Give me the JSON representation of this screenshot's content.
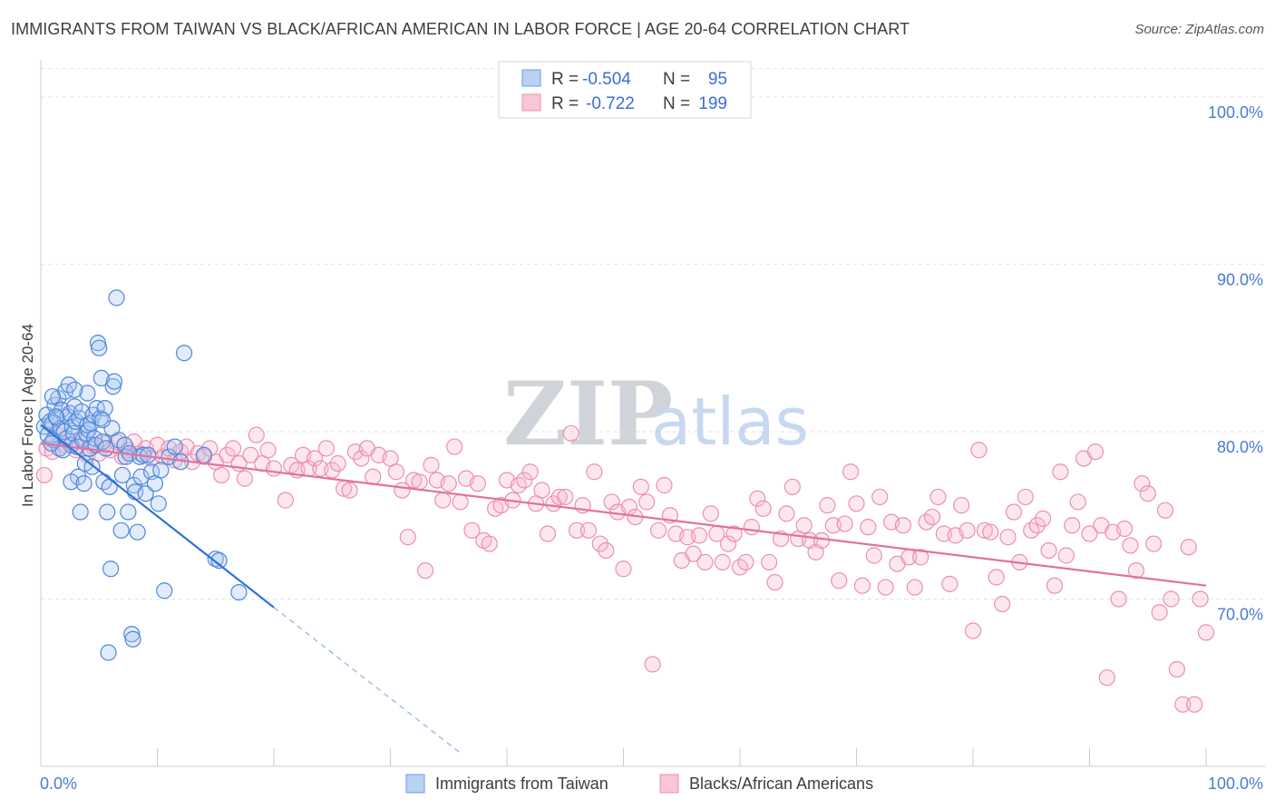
{
  "title": "IMMIGRANTS FROM TAIWAN VS BLACK/AFRICAN AMERICAN IN LABOR FORCE | AGE 20-64 CORRELATION CHART",
  "source": "Source: ZipAtlas.com",
  "watermark": {
    "zip": "ZIP",
    "atlas": "atlas"
  },
  "legend_top": [
    {
      "r_label": "R =",
      "r_value": "-0.504",
      "n_label": "N =",
      "n_value": "95",
      "color": "#6a9be3"
    },
    {
      "r_label": "R =",
      "r_value": "-0.722",
      "n_label": "N =",
      "n_value": "199",
      "color": "#ec8fb0"
    }
  ],
  "legend_bottom": [
    {
      "label": "Immigrants from Taiwan",
      "color": "#6a9be3"
    },
    {
      "label": "Blacks/African Americans",
      "color": "#ec8fb0"
    }
  ],
  "chart_data": {
    "type": "scatter",
    "title": "IMMIGRANTS FROM TAIWAN VS BLACK/AFRICAN AMERICAN IN LABOR FORCE | AGE 20-64 CORRELATION CHART",
    "xlabel": "",
    "ylabel": "In Labor Force | Age 20-64",
    "xlim": [
      0,
      100
    ],
    "ylim": [
      60,
      102
    ],
    "x_tick_labels": [
      "0.0%",
      "100.0%"
    ],
    "y_ticks": [
      70,
      80,
      90,
      100
    ],
    "y_tick_labels": [
      "70.0%",
      "80.0%",
      "90.0%",
      "100.0%"
    ],
    "grid": true,
    "series": [
      {
        "name": "Immigrants from Taiwan",
        "color": "#6a9be3",
        "trend": {
          "x0": 0,
          "y0": 80.4,
          "x1": 20,
          "y1": 69.5,
          "dash_x1": 36,
          "dash_y1": 60.8
        },
        "points": [
          [
            0.3,
            80.3
          ],
          [
            0.5,
            81.0
          ],
          [
            0.6,
            79.8
          ],
          [
            0.8,
            80.6
          ],
          [
            1.0,
            80.5
          ],
          [
            1.1,
            79.5
          ],
          [
            1.2,
            81.6
          ],
          [
            1.4,
            80.8
          ],
          [
            1.5,
            82.0
          ],
          [
            1.6,
            79.0
          ],
          [
            1.7,
            80.2
          ],
          [
            1.8,
            81.3
          ],
          [
            2.0,
            80.0
          ],
          [
            2.1,
            82.4
          ],
          [
            2.2,
            79.6
          ],
          [
            2.3,
            80.9
          ],
          [
            2.4,
            82.8
          ],
          [
            2.5,
            81.1
          ],
          [
            2.6,
            79.2
          ],
          [
            2.7,
            80.3
          ],
          [
            2.8,
            79.9
          ],
          [
            2.9,
            81.5
          ],
          [
            3.0,
            80.6
          ],
          [
            3.1,
            79.1
          ],
          [
            3.2,
            77.3
          ],
          [
            3.3,
            80.8
          ],
          [
            3.4,
            75.2
          ],
          [
            3.5,
            81.2
          ],
          [
            3.6,
            79.5
          ],
          [
            3.8,
            78.1
          ],
          [
            3.9,
            79.9
          ],
          [
            4.0,
            80.4
          ],
          [
            4.1,
            80.1
          ],
          [
            4.2,
            79.0
          ],
          [
            4.3,
            80.5
          ],
          [
            4.4,
            77.9
          ],
          [
            4.5,
            81.0
          ],
          [
            4.6,
            79.6
          ],
          [
            4.7,
            79.2
          ],
          [
            4.8,
            81.4
          ],
          [
            4.9,
            85.3
          ],
          [
            5.0,
            85.0
          ],
          [
            5.1,
            80.8
          ],
          [
            5.2,
            83.2
          ],
          [
            5.3,
            79.4
          ],
          [
            5.4,
            77.0
          ],
          [
            5.5,
            81.4
          ],
          [
            5.6,
            79.0
          ],
          [
            5.7,
            75.2
          ],
          [
            5.8,
            66.8
          ],
          [
            5.9,
            76.7
          ],
          [
            6.0,
            71.8
          ],
          [
            6.2,
            82.7
          ],
          [
            6.3,
            83.0
          ],
          [
            6.5,
            88.0
          ],
          [
            6.7,
            79.5
          ],
          [
            6.9,
            74.1
          ],
          [
            7.0,
            77.4
          ],
          [
            7.2,
            79.2
          ],
          [
            7.3,
            78.5
          ],
          [
            7.5,
            75.2
          ],
          [
            7.6,
            78.7
          ],
          [
            7.8,
            67.9
          ],
          [
            7.9,
            67.6
          ],
          [
            8.0,
            76.8
          ],
          [
            8.1,
            76.4
          ],
          [
            8.3,
            74.0
          ],
          [
            8.5,
            78.5
          ],
          [
            8.6,
            77.3
          ],
          [
            8.8,
            78.6
          ],
          [
            9.0,
            76.3
          ],
          [
            9.2,
            78.6
          ],
          [
            9.5,
            77.6
          ],
          [
            9.8,
            76.9
          ],
          [
            10.1,
            75.7
          ],
          [
            10.3,
            77.7
          ],
          [
            10.6,
            70.5
          ],
          [
            11.0,
            78.5
          ],
          [
            11.5,
            79.1
          ],
          [
            12.0,
            78.2
          ],
          [
            14.0,
            78.6
          ],
          [
            15.0,
            72.4
          ],
          [
            15.3,
            72.3
          ],
          [
            17.0,
            70.4
          ],
          [
            12.3,
            84.7
          ],
          [
            1.9,
            78.9
          ],
          [
            2.6,
            77.0
          ],
          [
            3.7,
            76.9
          ],
          [
            6.1,
            80.2
          ],
          [
            4.0,
            82.3
          ],
          [
            2.9,
            82.5
          ],
          [
            5.3,
            80.7
          ],
          [
            1.3,
            80.9
          ],
          [
            0.9,
            79.3
          ],
          [
            1.0,
            82.1
          ]
        ]
      },
      {
        "name": "Blacks/African Americans",
        "color": "#ec8fb0",
        "trend": {
          "x0": 0,
          "y0": 79.3,
          "x1": 100,
          "y1": 70.8
        },
        "points": [
          [
            0.3,
            77.4
          ],
          [
            0.5,
            79.0
          ],
          [
            1.0,
            78.8
          ],
          [
            1.5,
            79.8
          ],
          [
            2.0,
            79.2
          ],
          [
            2.5,
            79.4
          ],
          [
            3.0,
            78.9
          ],
          [
            3.5,
            79.6
          ],
          [
            4.0,
            78.6
          ],
          [
            4.5,
            79.1
          ],
          [
            5.0,
            78.7
          ],
          [
            5.5,
            79.3
          ],
          [
            6.0,
            78.9
          ],
          [
            6.5,
            79.4
          ],
          [
            7.0,
            78.5
          ],
          [
            7.5,
            78.9
          ],
          [
            8.0,
            79.4
          ],
          [
            8.5,
            78.7
          ],
          [
            9.0,
            79.0
          ],
          [
            9.5,
            78.4
          ],
          [
            10.0,
            79.2
          ],
          [
            10.5,
            78.5
          ],
          [
            11.0,
            79.0
          ],
          [
            11.5,
            78.3
          ],
          [
            12.0,
            78.8
          ],
          [
            12.5,
            79.1
          ],
          [
            13.0,
            78.2
          ],
          [
            13.5,
            78.7
          ],
          [
            14.0,
            78.5
          ],
          [
            14.5,
            79.0
          ],
          [
            15.0,
            78.2
          ],
          [
            15.5,
            77.4
          ],
          [
            16.0,
            78.6
          ],
          [
            16.5,
            79.0
          ],
          [
            17.0,
            78.1
          ],
          [
            17.5,
            77.2
          ],
          [
            18.0,
            78.6
          ],
          [
            18.5,
            79.8
          ],
          [
            19.0,
            78.1
          ],
          [
            19.5,
            78.9
          ],
          [
            20.0,
            77.8
          ],
          [
            21.0,
            75.9
          ],
          [
            21.5,
            78.0
          ],
          [
            22.0,
            77.7
          ],
          [
            22.5,
            78.6
          ],
          [
            23.0,
            77.8
          ],
          [
            23.5,
            78.4
          ],
          [
            24.0,
            77.8
          ],
          [
            24.5,
            79.0
          ],
          [
            25.0,
            77.7
          ],
          [
            25.5,
            78.1
          ],
          [
            26.0,
            76.6
          ],
          [
            26.5,
            76.5
          ],
          [
            27.0,
            78.8
          ],
          [
            27.5,
            78.4
          ],
          [
            28.0,
            79.0
          ],
          [
            28.5,
            77.3
          ],
          [
            29.0,
            78.6
          ],
          [
            30.0,
            78.4
          ],
          [
            30.5,
            77.6
          ],
          [
            31.0,
            76.5
          ],
          [
            31.5,
            73.7
          ],
          [
            32.0,
            77.1
          ],
          [
            32.5,
            77.0
          ],
          [
            33.0,
            71.7
          ],
          [
            33.5,
            78.0
          ],
          [
            34.0,
            77.1
          ],
          [
            34.5,
            75.9
          ],
          [
            35.0,
            76.9
          ],
          [
            35.5,
            79.1
          ],
          [
            36.0,
            75.8
          ],
          [
            36.5,
            77.2
          ],
          [
            37.0,
            74.1
          ],
          [
            37.5,
            76.9
          ],
          [
            38.0,
            73.5
          ],
          [
            38.5,
            73.3
          ],
          [
            39.0,
            75.4
          ],
          [
            39.5,
            75.6
          ],
          [
            40.0,
            77.1
          ],
          [
            40.5,
            75.9
          ],
          [
            41.0,
            76.8
          ],
          [
            41.5,
            77.1
          ],
          [
            42.0,
            77.6
          ],
          [
            42.5,
            75.7
          ],
          [
            43.0,
            76.5
          ],
          [
            43.5,
            73.9
          ],
          [
            44.0,
            75.7
          ],
          [
            44.5,
            76.1
          ],
          [
            45.0,
            76.1
          ],
          [
            45.5,
            79.9
          ],
          [
            46.0,
            74.1
          ],
          [
            46.5,
            75.6
          ],
          [
            47.0,
            74.1
          ],
          [
            47.5,
            77.6
          ],
          [
            48.0,
            73.3
          ],
          [
            48.5,
            72.9
          ],
          [
            49.0,
            75.8
          ],
          [
            49.5,
            75.2
          ],
          [
            50.0,
            71.8
          ],
          [
            50.5,
            75.5
          ],
          [
            51.0,
            74.9
          ],
          [
            51.5,
            76.7
          ],
          [
            52.0,
            75.8
          ],
          [
            52.5,
            66.1
          ],
          [
            53.0,
            74.1
          ],
          [
            53.5,
            76.8
          ],
          [
            54.0,
            75.0
          ],
          [
            54.5,
            73.9
          ],
          [
            55.0,
            72.3
          ],
          [
            55.5,
            73.7
          ],
          [
            56.0,
            72.7
          ],
          [
            56.5,
            73.8
          ],
          [
            57.0,
            72.2
          ],
          [
            57.5,
            75.1
          ],
          [
            58.0,
            73.9
          ],
          [
            58.5,
            72.2
          ],
          [
            59.0,
            73.3
          ],
          [
            59.5,
            73.9
          ],
          [
            60.0,
            71.9
          ],
          [
            60.5,
            72.2
          ],
          [
            61.0,
            74.3
          ],
          [
            61.5,
            76.0
          ],
          [
            62.0,
            75.4
          ],
          [
            62.5,
            72.2
          ],
          [
            63.0,
            71.0
          ],
          [
            63.5,
            73.6
          ],
          [
            64.0,
            75.1
          ],
          [
            64.5,
            76.7
          ],
          [
            65.0,
            73.6
          ],
          [
            65.5,
            74.4
          ],
          [
            66.0,
            73.5
          ],
          [
            66.5,
            72.8
          ],
          [
            67.0,
            73.5
          ],
          [
            67.5,
            75.6
          ],
          [
            68.0,
            74.4
          ],
          [
            68.5,
            71.1
          ],
          [
            69.0,
            74.5
          ],
          [
            69.5,
            77.6
          ],
          [
            70.0,
            75.7
          ],
          [
            70.5,
            70.8
          ],
          [
            71.0,
            74.3
          ],
          [
            71.5,
            72.6
          ],
          [
            72.0,
            76.1
          ],
          [
            72.5,
            70.7
          ],
          [
            73.0,
            74.6
          ],
          [
            73.5,
            72.1
          ],
          [
            74.0,
            74.4
          ],
          [
            74.5,
            72.5
          ],
          [
            75.0,
            70.7
          ],
          [
            75.5,
            72.5
          ],
          [
            76.0,
            74.6
          ],
          [
            76.5,
            74.9
          ],
          [
            77.0,
            76.1
          ],
          [
            77.5,
            73.9
          ],
          [
            78.0,
            70.9
          ],
          [
            78.5,
            73.8
          ],
          [
            79.0,
            75.6
          ],
          [
            79.5,
            74.1
          ],
          [
            80.0,
            68.1
          ],
          [
            80.5,
            78.9
          ],
          [
            81.0,
            74.1
          ],
          [
            81.5,
            74.0
          ],
          [
            82.0,
            71.3
          ],
          [
            82.5,
            69.7
          ],
          [
            83.0,
            73.7
          ],
          [
            83.5,
            75.2
          ],
          [
            84.0,
            72.2
          ],
          [
            84.5,
            76.1
          ],
          [
            85.0,
            74.1
          ],
          [
            85.5,
            74.4
          ],
          [
            86.0,
            74.8
          ],
          [
            86.5,
            72.9
          ],
          [
            87.0,
            70.8
          ],
          [
            87.5,
            77.6
          ],
          [
            88.0,
            72.6
          ],
          [
            88.5,
            74.4
          ],
          [
            89.0,
            75.8
          ],
          [
            89.5,
            78.4
          ],
          [
            90.0,
            73.9
          ],
          [
            90.5,
            78.8
          ],
          [
            91.0,
            74.4
          ],
          [
            91.5,
            65.3
          ],
          [
            92.0,
            74.0
          ],
          [
            92.5,
            70.0
          ],
          [
            93.0,
            74.2
          ],
          [
            93.5,
            73.2
          ],
          [
            94.0,
            71.7
          ],
          [
            94.5,
            76.9
          ],
          [
            95.0,
            76.3
          ],
          [
            95.5,
            73.3
          ],
          [
            96.0,
            69.2
          ],
          [
            96.5,
            75.3
          ],
          [
            97.0,
            70.0
          ],
          [
            97.5,
            65.8
          ],
          [
            98.0,
            63.7
          ],
          [
            98.5,
            73.1
          ],
          [
            99.0,
            63.7
          ],
          [
            99.5,
            70.0
          ],
          [
            100.0,
            68.0
          ]
        ]
      }
    ]
  }
}
